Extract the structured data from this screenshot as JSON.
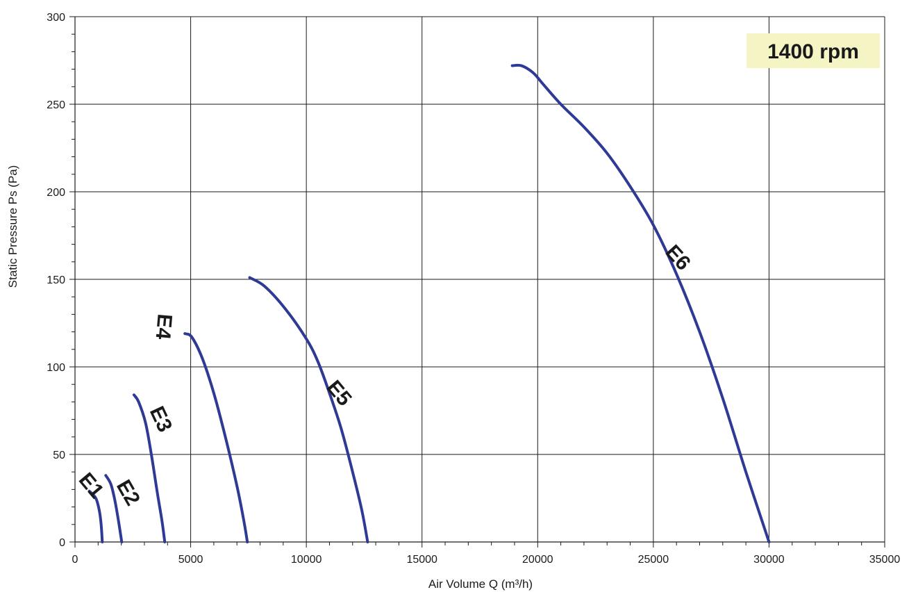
{
  "chart_data": {
    "type": "line",
    "title": "",
    "xlabel": "Air Volume Q (m³/h)",
    "ylabel": "Static Pressure Ps (Pa)",
    "xlim": [
      0,
      35000
    ],
    "ylim": [
      0,
      300
    ],
    "x_ticks": [
      0,
      5000,
      10000,
      15000,
      20000,
      25000,
      30000,
      35000
    ],
    "y_ticks": [
      0,
      50,
      100,
      150,
      200,
      250,
      300
    ],
    "x_tick_labels": [
      "0",
      "5000",
      "10000",
      "15000",
      "20000",
      "25000",
      "30000",
      "35000"
    ],
    "y_tick_labels": [
      "0",
      "50",
      "100",
      "150",
      "200",
      "250",
      "300"
    ],
    "grid": true,
    "line_color": "#2e3a94",
    "annotation": {
      "text": "1400 rpm",
      "background": "#f5f4c4",
      "placement": "top-right"
    },
    "series": [
      {
        "name": "E1",
        "points": [
          [
            620,
            29
          ],
          [
            900,
            25
          ],
          [
            1050,
            18
          ],
          [
            1130,
            10
          ],
          [
            1180,
            0
          ]
        ]
      },
      {
        "name": "E2",
        "points": [
          [
            1330,
            38
          ],
          [
            1550,
            33
          ],
          [
            1720,
            24
          ],
          [
            1880,
            12
          ],
          [
            2020,
            0
          ]
        ]
      },
      {
        "name": "E3",
        "points": [
          [
            2550,
            84
          ],
          [
            2750,
            80
          ],
          [
            3050,
            68
          ],
          [
            3300,
            50
          ],
          [
            3560,
            28
          ],
          [
            3760,
            12
          ],
          [
            3880,
            0
          ]
        ]
      },
      {
        "name": "E4",
        "points": [
          [
            4750,
            119
          ],
          [
            5050,
            117
          ],
          [
            5500,
            105
          ],
          [
            6000,
            85
          ],
          [
            6500,
            60
          ],
          [
            7000,
            32
          ],
          [
            7300,
            12
          ],
          [
            7450,
            0
          ]
        ]
      },
      {
        "name": "E5",
        "points": [
          [
            7550,
            151
          ],
          [
            8200,
            146
          ],
          [
            9100,
            133
          ],
          [
            10000,
            116
          ],
          [
            10500,
            103
          ],
          [
            11000,
            85
          ],
          [
            11500,
            65
          ],
          [
            12000,
            40
          ],
          [
            12400,
            18
          ],
          [
            12650,
            0
          ]
        ]
      },
      {
        "name": "E6",
        "points": [
          [
            18900,
            272
          ],
          [
            19300,
            272
          ],
          [
            19800,
            268
          ],
          [
            20200,
            262
          ],
          [
            21000,
            250
          ],
          [
            22000,
            237
          ],
          [
            23000,
            222
          ],
          [
            24000,
            203
          ],
          [
            25000,
            181
          ],
          [
            26000,
            153
          ],
          [
            27000,
            120
          ],
          [
            28000,
            82
          ],
          [
            29000,
            40
          ],
          [
            30000,
            0
          ]
        ]
      }
    ]
  }
}
